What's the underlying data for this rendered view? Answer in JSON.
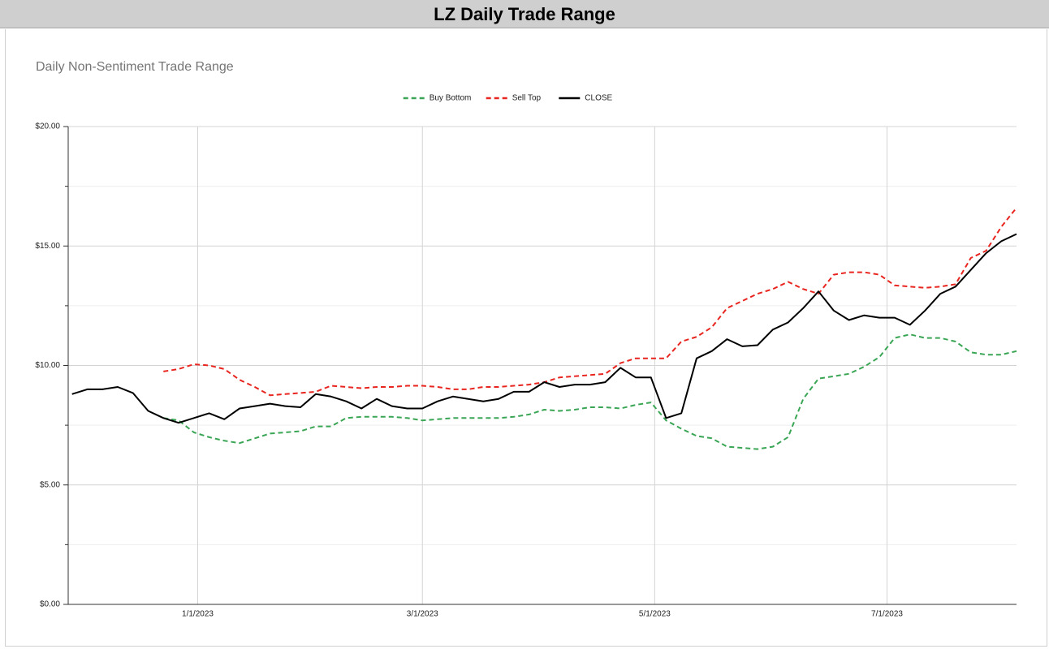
{
  "header": {
    "title": "LZ Daily Trade Range"
  },
  "chart_data": {
    "type": "line",
    "title": "Daily Non-Sentiment Trade Range",
    "x": [
      "2022-11-29",
      "2022-12-03",
      "2022-12-07",
      "2022-12-11",
      "2022-12-15",
      "2022-12-19",
      "2022-12-23",
      "2022-12-27",
      "2022-12-31",
      "2023-01-04",
      "2023-01-08",
      "2023-01-12",
      "2023-01-16",
      "2023-01-20",
      "2023-01-24",
      "2023-01-28",
      "2023-02-01",
      "2023-02-05",
      "2023-02-09",
      "2023-02-13",
      "2023-02-17",
      "2023-02-21",
      "2023-02-25",
      "2023-03-01",
      "2023-03-05",
      "2023-03-09",
      "2023-03-13",
      "2023-03-17",
      "2023-03-21",
      "2023-03-25",
      "2023-03-29",
      "2023-04-02",
      "2023-04-06",
      "2023-04-10",
      "2023-04-14",
      "2023-04-18",
      "2023-04-22",
      "2023-04-26",
      "2023-04-30",
      "2023-05-04",
      "2023-05-08",
      "2023-05-12",
      "2023-05-16",
      "2023-05-20",
      "2023-05-24",
      "2023-05-28",
      "2023-06-01",
      "2023-06-05",
      "2023-06-09",
      "2023-06-13",
      "2023-06-17",
      "2023-06-21",
      "2023-06-25",
      "2023-06-29",
      "2023-07-03",
      "2023-07-07",
      "2023-07-11",
      "2023-07-15",
      "2023-07-19",
      "2023-07-23",
      "2023-07-27",
      "2023-07-31",
      "2023-08-04"
    ],
    "series": [
      {
        "name": "Buy Bottom",
        "color": "#3aa655",
        "dash": true,
        "values": [
          null,
          null,
          null,
          null,
          null,
          null,
          7.8,
          7.7,
          7.2,
          7.0,
          6.85,
          6.75,
          6.95,
          7.15,
          7.2,
          7.25,
          7.45,
          7.45,
          7.8,
          7.85,
          7.85,
          7.85,
          7.8,
          7.7,
          7.75,
          7.8,
          7.8,
          7.8,
          7.8,
          7.85,
          7.95,
          8.15,
          8.1,
          8.15,
          8.25,
          8.25,
          8.2,
          8.35,
          8.45,
          7.7,
          7.35,
          7.05,
          6.95,
          6.6,
          6.55,
          6.5,
          6.6,
          7.0,
          8.6,
          9.45,
          9.55,
          9.65,
          9.95,
          10.35,
          11.15,
          11.3,
          11.15,
          11.15,
          11.0,
          10.55,
          10.45,
          10.45,
          10.6
        ]
      },
      {
        "name": "Sell Top",
        "color": "#e8251f",
        "dash": true,
        "values": [
          null,
          null,
          null,
          null,
          null,
          null,
          9.75,
          9.85,
          10.05,
          10.0,
          9.85,
          9.4,
          9.1,
          8.75,
          8.8,
          8.85,
          8.9,
          9.15,
          9.1,
          9.05,
          9.1,
          9.1,
          9.15,
          9.15,
          9.1,
          9.0,
          9.0,
          9.1,
          9.1,
          9.15,
          9.2,
          9.3,
          9.5,
          9.55,
          9.6,
          9.65,
          10.1,
          10.3,
          10.3,
          10.3,
          11.0,
          11.2,
          11.6,
          12.4,
          12.7,
          13.0,
          13.2,
          13.5,
          13.2,
          13.0,
          13.8,
          13.9,
          13.9,
          13.8,
          13.35,
          13.3,
          13.25,
          13.3,
          13.4,
          14.5,
          14.8,
          15.8,
          16.6
        ]
      },
      {
        "name": "CLOSE",
        "color": "#000000",
        "dash": false,
        "values": [
          8.8,
          9.0,
          9.0,
          9.1,
          8.85,
          8.1,
          7.8,
          7.6,
          7.8,
          8.0,
          7.75,
          8.2,
          8.3,
          8.4,
          8.3,
          8.25,
          8.8,
          8.7,
          8.5,
          8.2,
          8.6,
          8.3,
          8.2,
          8.2,
          8.5,
          8.7,
          8.6,
          8.5,
          8.6,
          8.9,
          8.9,
          9.3,
          9.1,
          9.2,
          9.2,
          9.3,
          9.9,
          9.5,
          9.5,
          7.8,
          8.0,
          10.3,
          10.6,
          11.1,
          10.8,
          10.85,
          11.5,
          11.8,
          12.4,
          13.1,
          12.3,
          11.9,
          12.1,
          12.0,
          12.0,
          11.7,
          12.3,
          13.0,
          13.3,
          14.0,
          14.7,
          15.2,
          15.5
        ]
      }
    ],
    "xlim": [
      "2022-11-28",
      "2023-08-04"
    ],
    "xticks": [
      {
        "value": "2023-01-01",
        "label": "1/1/2023"
      },
      {
        "value": "2023-03-01",
        "label": "3/1/2023"
      },
      {
        "value": "2023-05-01",
        "label": "5/1/2023"
      },
      {
        "value": "2023-07-01",
        "label": "7/1/2023"
      }
    ],
    "ylim": [
      0,
      20
    ],
    "yticks": [
      {
        "value": 0,
        "label": "$0.00"
      },
      {
        "value": 5,
        "label": "$5.00"
      },
      {
        "value": 10,
        "label": "$10.00"
      },
      {
        "value": 15,
        "label": "$15.00"
      },
      {
        "value": 20,
        "label": "$20.00"
      }
    ],
    "minor_yticks": [
      2.5,
      7.5,
      12.5,
      17.5
    ],
    "grid": true,
    "legend": "top"
  }
}
